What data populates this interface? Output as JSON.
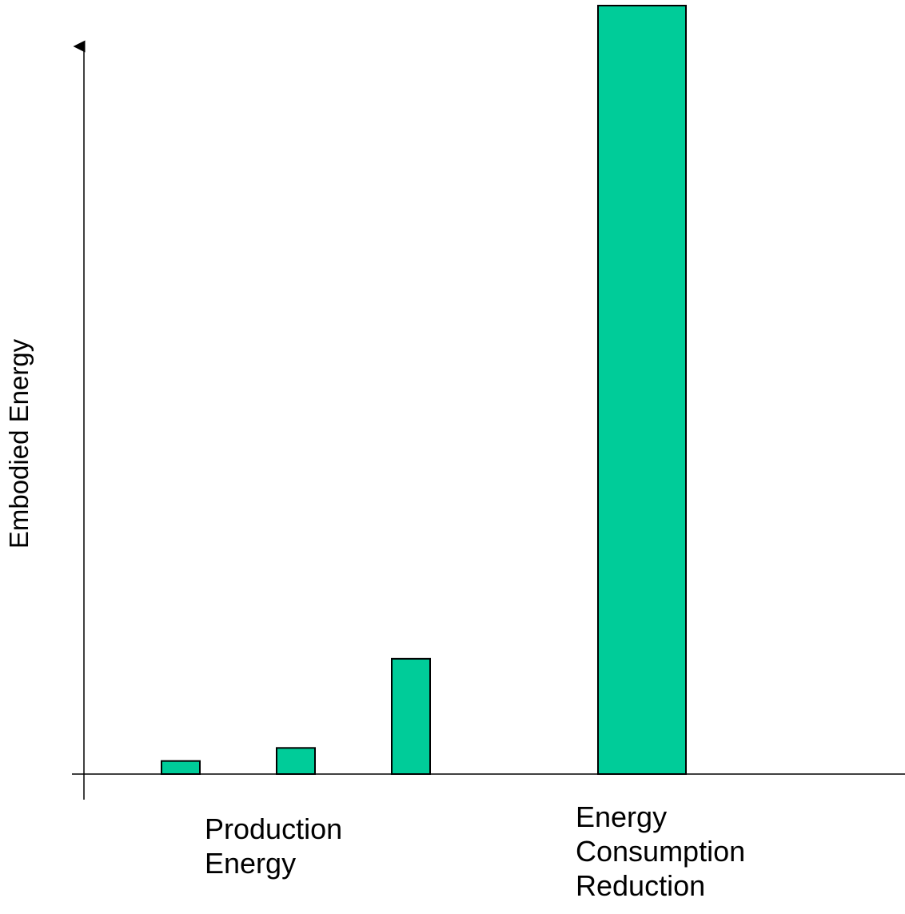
{
  "chart_data": {
    "type": "bar",
    "title": "",
    "xlabel": "",
    "ylabel": "Embodied Energy",
    "ylim": [
      0,
      100
    ],
    "grid": false,
    "legend": "none",
    "bar_color": "#00CC99",
    "values": [
      1.7,
      3.4,
      15,
      100
    ],
    "group_labels": {
      "production": [
        "Production",
        "Energy"
      ],
      "consumption": [
        "Energy",
        "Consumption",
        "Reduction"
      ]
    }
  }
}
